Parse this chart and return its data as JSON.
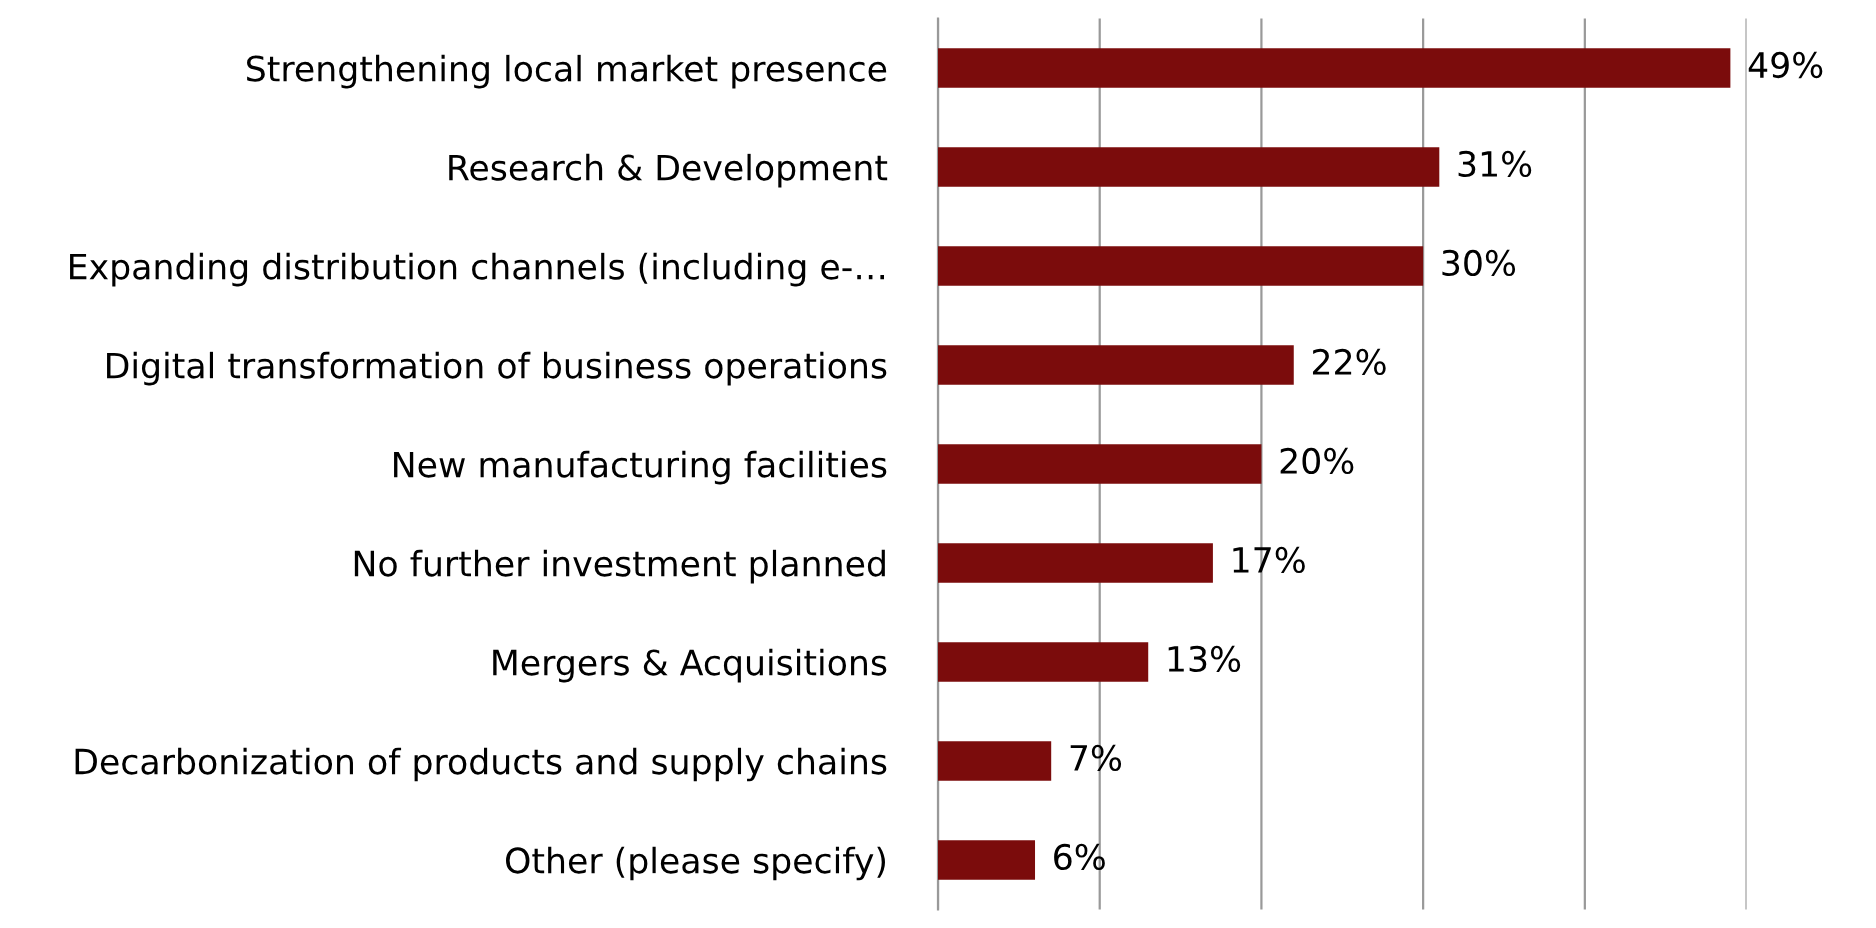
{
  "chart_data": {
    "type": "bar",
    "orientation": "horizontal",
    "categories": [
      "Strengthening local market presence",
      "Research & Development",
      "Expanding distribution channels (including e-…",
      "Digital transformation of business operations",
      "New manufacturing facilities",
      "No further investment planned",
      "Mergers & Acquisitions",
      "Decarbonization of products and supply chains",
      "Other (please specify)"
    ],
    "values": [
      49,
      31,
      30,
      22,
      20,
      17,
      13,
      7,
      6
    ],
    "value_labels": [
      "49%",
      "31%",
      "30%",
      "22%",
      "20%",
      "17%",
      "13%",
      "7%",
      "6%"
    ],
    "color": "#7b0c0c",
    "xlim": [
      0,
      50
    ],
    "xticks": [
      {
        "value": 0,
        "label": null
      },
      {
        "value": 10,
        "label": null
      },
      {
        "value": 20,
        "label": null
      },
      {
        "value": 30,
        "label": null
      },
      {
        "value": 40,
        "label": null
      },
      {
        "value": 50,
        "label": null
      }
    ],
    "grid": "x",
    "tick_labels": "y"
  }
}
